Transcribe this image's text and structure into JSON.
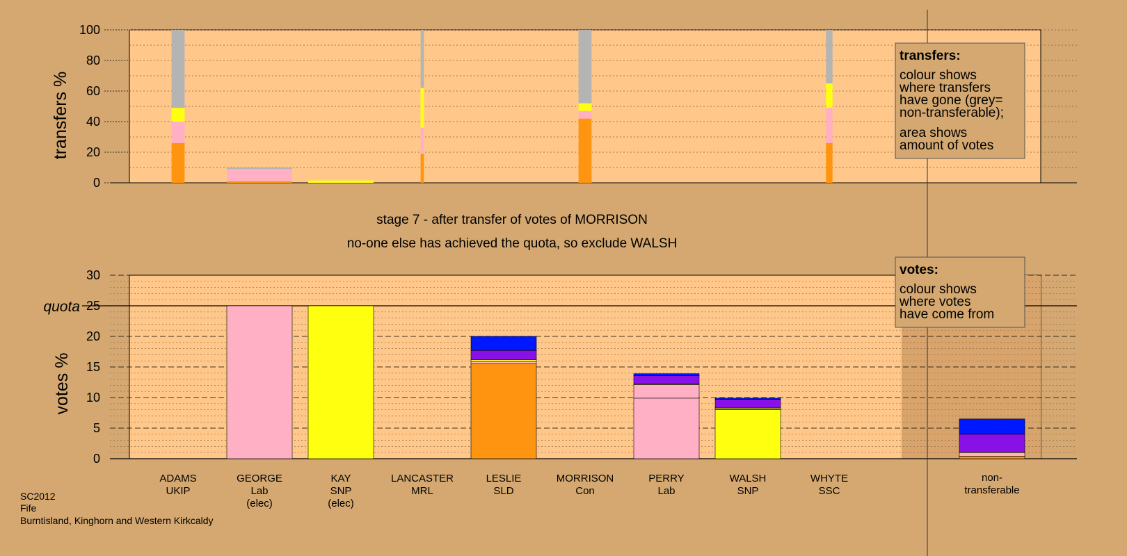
{
  "colors": {
    "background": "#d4a870",
    "panel": "#ffc88a",
    "panel_dark": "#d8a46c",
    "pink": "#ffb0c4",
    "yellow": "#ffff10",
    "orange": "#ff9410",
    "purple": "#8a10e8",
    "blue": "#0018ff",
    "grey": "#b4b4b4"
  },
  "stage_text": [
    "stage 7 - after transfer of votes of MORRISON",
    "no-one else has achieved the quota, so exclude WALSH"
  ],
  "footer": [
    "SC2012",
    "Fife",
    "Burntisland, Kinghorn and Western Kirkcaldy"
  ],
  "legend_transfers": {
    "title": "transfers:",
    "para1": [
      "colour shows",
      "where transfers",
      "have gone (grey=",
      "non-transferable);"
    ],
    "para2": [
      "area shows",
      "amount of votes"
    ]
  },
  "legend_votes": {
    "title": "votes:",
    "para1": [
      "colour shows",
      "where votes",
      "have come from"
    ]
  },
  "chart_data": [
    {
      "type": "bar",
      "name": "transfers",
      "ylabel": "transfers %",
      "ylim": [
        0,
        100
      ],
      "yticks": [
        0,
        20,
        40,
        60,
        80,
        100
      ],
      "categories": [
        "ADAMS",
        "GEORGE",
        "KAY",
        "LANCASTER",
        "LESLIE",
        "MORRISON",
        "PERRY",
        "WALSH",
        "WHYTE"
      ],
      "width_fraction": [
        0.2,
        1.0,
        1.0,
        0.05,
        0.0,
        0.2,
        0.0,
        0.0,
        0.1
      ],
      "stacks": [
        [
          {
            "color": "orange",
            "value": 26
          },
          {
            "color": "pink",
            "value": 14
          },
          {
            "color": "yellow",
            "value": 9
          },
          {
            "color": "grey",
            "value": 51
          }
        ],
        [
          {
            "color": "orange",
            "value": 1
          },
          {
            "color": "pink",
            "value": 8
          },
          {
            "color": "grey",
            "value": 1
          }
        ],
        [
          {
            "color": "yellow",
            "value": 1.5
          }
        ],
        [
          {
            "color": "orange",
            "value": 19
          },
          {
            "color": "pink",
            "value": 17
          },
          {
            "color": "yellow",
            "value": 26
          },
          {
            "color": "grey",
            "value": 38
          }
        ],
        [],
        [
          {
            "color": "orange",
            "value": 42
          },
          {
            "color": "pink",
            "value": 5
          },
          {
            "color": "yellow",
            "value": 5
          },
          {
            "color": "grey",
            "value": 48
          }
        ],
        [],
        [],
        [
          {
            "color": "orange",
            "value": 26
          },
          {
            "color": "pink",
            "value": 23
          },
          {
            "color": "yellow",
            "value": 16
          },
          {
            "color": "grey",
            "value": 35
          }
        ]
      ]
    },
    {
      "type": "bar",
      "name": "votes",
      "ylabel": "votes %",
      "ylim": [
        0,
        30
      ],
      "yticks": [
        0,
        5,
        10,
        15,
        20,
        25,
        30
      ],
      "quota": 25,
      "quota_label": "quota",
      "categories": [
        {
          "name": "ADAMS",
          "party": "UKIP",
          "note": ""
        },
        {
          "name": "GEORGE",
          "party": "Lab",
          "note": "(elec)"
        },
        {
          "name": "KAY",
          "party": "SNP",
          "note": "(elec)"
        },
        {
          "name": "LANCASTER",
          "party": "MRL",
          "note": ""
        },
        {
          "name": "LESLIE",
          "party": "SLD",
          "note": ""
        },
        {
          "name": "MORRISON",
          "party": "Con",
          "note": ""
        },
        {
          "name": "PERRY",
          "party": "Lab",
          "note": ""
        },
        {
          "name": "WALSH",
          "party": "SNP",
          "note": ""
        },
        {
          "name": "WHYTE",
          "party": "SSC",
          "note": ""
        }
      ],
      "stacks": [
        [],
        [
          {
            "color": "pink",
            "value": 25
          }
        ],
        [
          {
            "color": "yellow",
            "value": 25
          }
        ],
        [],
        [
          {
            "color": "orange",
            "value": 15.5
          },
          {
            "color": "pink",
            "value": 0.4
          },
          {
            "color": "yellow",
            "value": 0.3
          },
          {
            "color": "purple",
            "value": 1.5
          },
          {
            "color": "blue",
            "value": 2.3
          }
        ],
        [],
        [
          {
            "color": "pink",
            "value": 9.9
          },
          {
            "color": "pink",
            "value": 2.2
          },
          {
            "color": "yellow",
            "value": 0.1
          },
          {
            "color": "purple",
            "value": 1.4
          },
          {
            "color": "blue",
            "value": 0.3
          }
        ],
        [
          {
            "color": "yellow",
            "value": 8.0
          },
          {
            "color": "pink",
            "value": 0.1
          },
          {
            "color": "yellow",
            "value": 0.2
          },
          {
            "color": "purple",
            "value": 1.4
          },
          {
            "color": "blue",
            "value": 0.2
          }
        ],
        []
      ],
      "nontransferable": {
        "label": [
          "non-",
          "transferable"
        ],
        "stack": [
          {
            "color": "orange",
            "value": 0.4
          },
          {
            "color": "pink",
            "value": 0.6
          },
          {
            "color": "yellow",
            "value": 0.1
          },
          {
            "color": "purple",
            "value": 2.9
          },
          {
            "color": "blue",
            "value": 2.5
          }
        ]
      }
    }
  ]
}
